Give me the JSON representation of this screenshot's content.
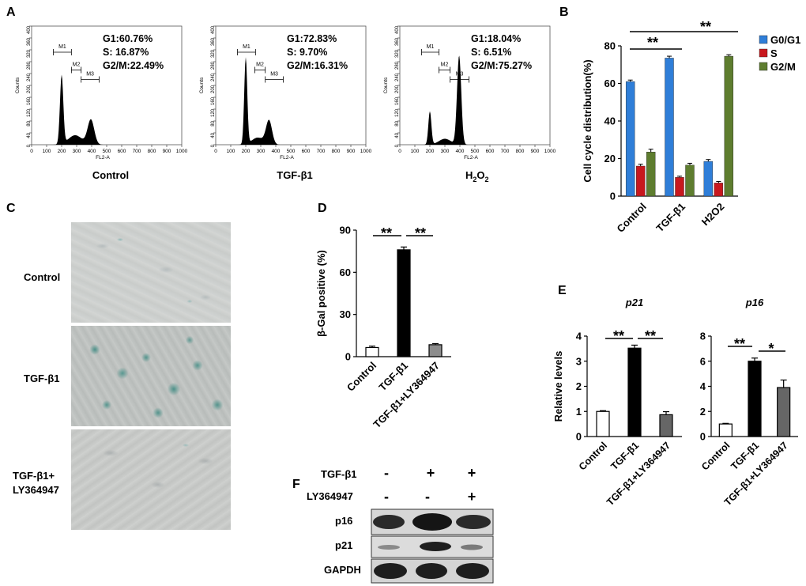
{
  "panels": {
    "A": "A",
    "B": "B",
    "C": "C",
    "D": "D",
    "E": "E",
    "F": "F"
  },
  "flow": {
    "y_axis_label": "Counts",
    "x_axis_label": "FL2-A",
    "y_ticks": [
      "0",
      "40",
      "80",
      "120",
      "160",
      "200",
      "240",
      "280",
      "320",
      "360",
      "400"
    ],
    "x_ticks": [
      "0",
      "100",
      "200",
      "300",
      "400",
      "500",
      "600",
      "700",
      "800",
      "900",
      "1000"
    ],
    "gates": [
      "M1",
      "M2",
      "M3"
    ],
    "panels": [
      {
        "caption": "Control",
        "lines": [
          "G1:60.76%",
          "S: 16.87%",
          "G2/M:22.49%"
        ]
      },
      {
        "caption": "TGF-β1",
        "lines": [
          "G1:72.83%",
          "S: 9.70%",
          "G2/M:16.31%"
        ]
      },
      {
        "caption_main": "H",
        "caption_sub": "2",
        "caption_main2": "O",
        "caption_sub2": "2",
        "lines": [
          "G1:18.04%",
          "S: 6.51%",
          "G2/M:75.27%"
        ]
      }
    ]
  },
  "micrographs": {
    "rows": [
      "Control",
      "TGF-β1",
      "TGF-β1+",
      "LY364947"
    ]
  },
  "western": {
    "header_rows": [
      {
        "label": "TGF-β1",
        "marks": [
          "-",
          "+",
          "+"
        ]
      },
      {
        "label": "LY364947",
        "marks": [
          "-",
          "-",
          "+"
        ]
      }
    ],
    "bands": [
      "p16",
      "p21",
      "GAPDH"
    ]
  },
  "chart_data": [
    {
      "panel": "B",
      "type": "bar",
      "ylabel": "Cell cycle distribution(%)",
      "categories": [
        "Control",
        "TGF-β1",
        "H2O2"
      ],
      "ylim": [
        0,
        80
      ],
      "yticks": [
        0,
        20,
        40,
        60,
        80
      ],
      "legend_position": "top-right",
      "series": [
        {
          "name": "G0/G1",
          "values": [
            61,
            73.5,
            18.5
          ],
          "errors": [
            0.8,
            1.0,
            1.0
          ],
          "color": "#2f7ed8"
        },
        {
          "name": "S",
          "values": [
            16,
            10,
            7
          ],
          "errors": [
            1.0,
            0.6,
            0.8
          ],
          "color": "#c8181e"
        },
        {
          "name": "G2/M",
          "values": [
            23.5,
            16.5,
            74.5
          ],
          "errors": [
            1.5,
            1.0,
            0.8
          ],
          "color": "#5e7d2f"
        }
      ],
      "significance": [
        "**",
        "**"
      ]
    },
    {
      "panel": "D",
      "type": "bar",
      "ylabel": "β-Gal positive (%)",
      "categories": [
        "Control",
        "TGF-β1",
        "TGF-β1+LY364947"
      ],
      "ylim": [
        0,
        90
      ],
      "yticks": [
        0,
        30,
        60,
        90
      ],
      "values": [
        6.5,
        76,
        8.5
      ],
      "errors": [
        1.0,
        2.0,
        0.8
      ],
      "colors": [
        "#ffffff",
        "#000000",
        "#8c8c8c"
      ],
      "significance": [
        "**",
        "**"
      ]
    },
    {
      "panel": "E",
      "type": "bar",
      "title": "p21",
      "ylabel": "Relative levels",
      "categories": [
        "Control",
        "TGF-β1",
        "TGF-β1+LY364947"
      ],
      "ylim": [
        0,
        4
      ],
      "yticks": [
        0,
        1,
        2,
        3,
        4
      ],
      "values": [
        1.0,
        3.52,
        0.87
      ],
      "errors": [
        0.03,
        0.12,
        0.12
      ],
      "colors": [
        "#ffffff",
        "#000000",
        "#666666"
      ],
      "significance": [
        "**",
        "**"
      ]
    },
    {
      "panel": "E",
      "type": "bar",
      "title": "p16",
      "ylabel": "",
      "categories": [
        "Control",
        "TGF-β1",
        "TGF-β1+LY364947"
      ],
      "ylim": [
        0,
        8
      ],
      "yticks": [
        0,
        2,
        4,
        6,
        8
      ],
      "values": [
        1.0,
        6.0,
        3.9
      ],
      "errors": [
        0.05,
        0.25,
        0.6
      ],
      "colors": [
        "#ffffff",
        "#000000",
        "#666666"
      ],
      "significance": [
        "**",
        "*"
      ]
    }
  ]
}
